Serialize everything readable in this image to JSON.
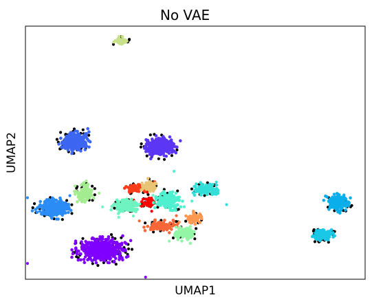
{
  "chart_data": {
    "type": "scatter",
    "title": "No VAE",
    "xlabel": "UMAP1",
    "ylabel": "UMAP2",
    "xlim": [
      0,
      100
    ],
    "ylim": [
      0,
      100
    ],
    "grid": false,
    "legend": "none",
    "ticks": "none",
    "outlier_color": "#000000",
    "clusters": [
      {
        "color": "#c8e08a",
        "cx": 28,
        "cy": 94,
        "sx": 0.9,
        "sy": 0.6,
        "n": 45,
        "outliers": 6
      },
      {
        "color": "#3d66f2",
        "cx": 14.5,
        "cy": 54.5,
        "sx": 1.8,
        "sy": 1.6,
        "n": 330,
        "outliers": 28
      },
      {
        "color": "#5b36f5",
        "cx": 39.5,
        "cy": 52.5,
        "sx": 2.0,
        "sy": 1.7,
        "n": 330,
        "outliers": 22
      },
      {
        "color": "#2b8cf5",
        "cx": 8.5,
        "cy": 28,
        "sx": 2.0,
        "sy": 1.5,
        "n": 340,
        "outliers": 26
      },
      {
        "color": "#7f00ff",
        "cx": 22.5,
        "cy": 11.5,
        "sx": 2.8,
        "sy": 2.1,
        "n": 560,
        "outliers": 45
      },
      {
        "color": "#a4ec90",
        "cx": 17.5,
        "cy": 34,
        "sx": 1.1,
        "sy": 1.5,
        "n": 110,
        "outliers": 12
      },
      {
        "color": "#6ef3c1",
        "cx": 30,
        "cy": 29,
        "sx": 1.8,
        "sy": 1.1,
        "n": 150,
        "outliers": 12
      },
      {
        "color": "#ff3c1a",
        "cx": 32.5,
        "cy": 36,
        "sx": 1.3,
        "sy": 0.8,
        "n": 70,
        "outliers": 8
      },
      {
        "color": "#e8c476",
        "cx": 36.5,
        "cy": 36.5,
        "sx": 1.0,
        "sy": 1.0,
        "n": 80,
        "outliers": 6
      },
      {
        "color": "#ff0000",
        "cx": 36.5,
        "cy": 30.5,
        "sx": 0.9,
        "sy": 0.8,
        "n": 55,
        "outliers": 6
      },
      {
        "color": "#4ff0d0",
        "cx": 42,
        "cy": 31,
        "sx": 1.6,
        "sy": 1.5,
        "n": 200,
        "outliers": 14
      },
      {
        "color": "#32dfd8",
        "cx": 53,
        "cy": 35.5,
        "sx": 1.5,
        "sy": 1.0,
        "n": 140,
        "outliers": 14
      },
      {
        "color": "#ff9850",
        "cx": 49.5,
        "cy": 24,
        "sx": 1.1,
        "sy": 1.0,
        "n": 80,
        "outliers": 8
      },
      {
        "color": "#f86738",
        "cx": 40,
        "cy": 21,
        "sx": 2.0,
        "sy": 1.0,
        "n": 110,
        "outliers": 10
      },
      {
        "color": "#93f5a6",
        "cx": 47,
        "cy": 18,
        "sx": 1.3,
        "sy": 1.1,
        "n": 110,
        "outliers": 8
      },
      {
        "color": "#0aaeeb",
        "cx": 92,
        "cy": 30.5,
        "sx": 1.4,
        "sy": 1.3,
        "n": 200,
        "outliers": 16
      },
      {
        "color": "#18c8e6",
        "cx": 87.5,
        "cy": 17.5,
        "sx": 1.3,
        "sy": 1.0,
        "n": 140,
        "outliers": 20
      }
    ]
  }
}
